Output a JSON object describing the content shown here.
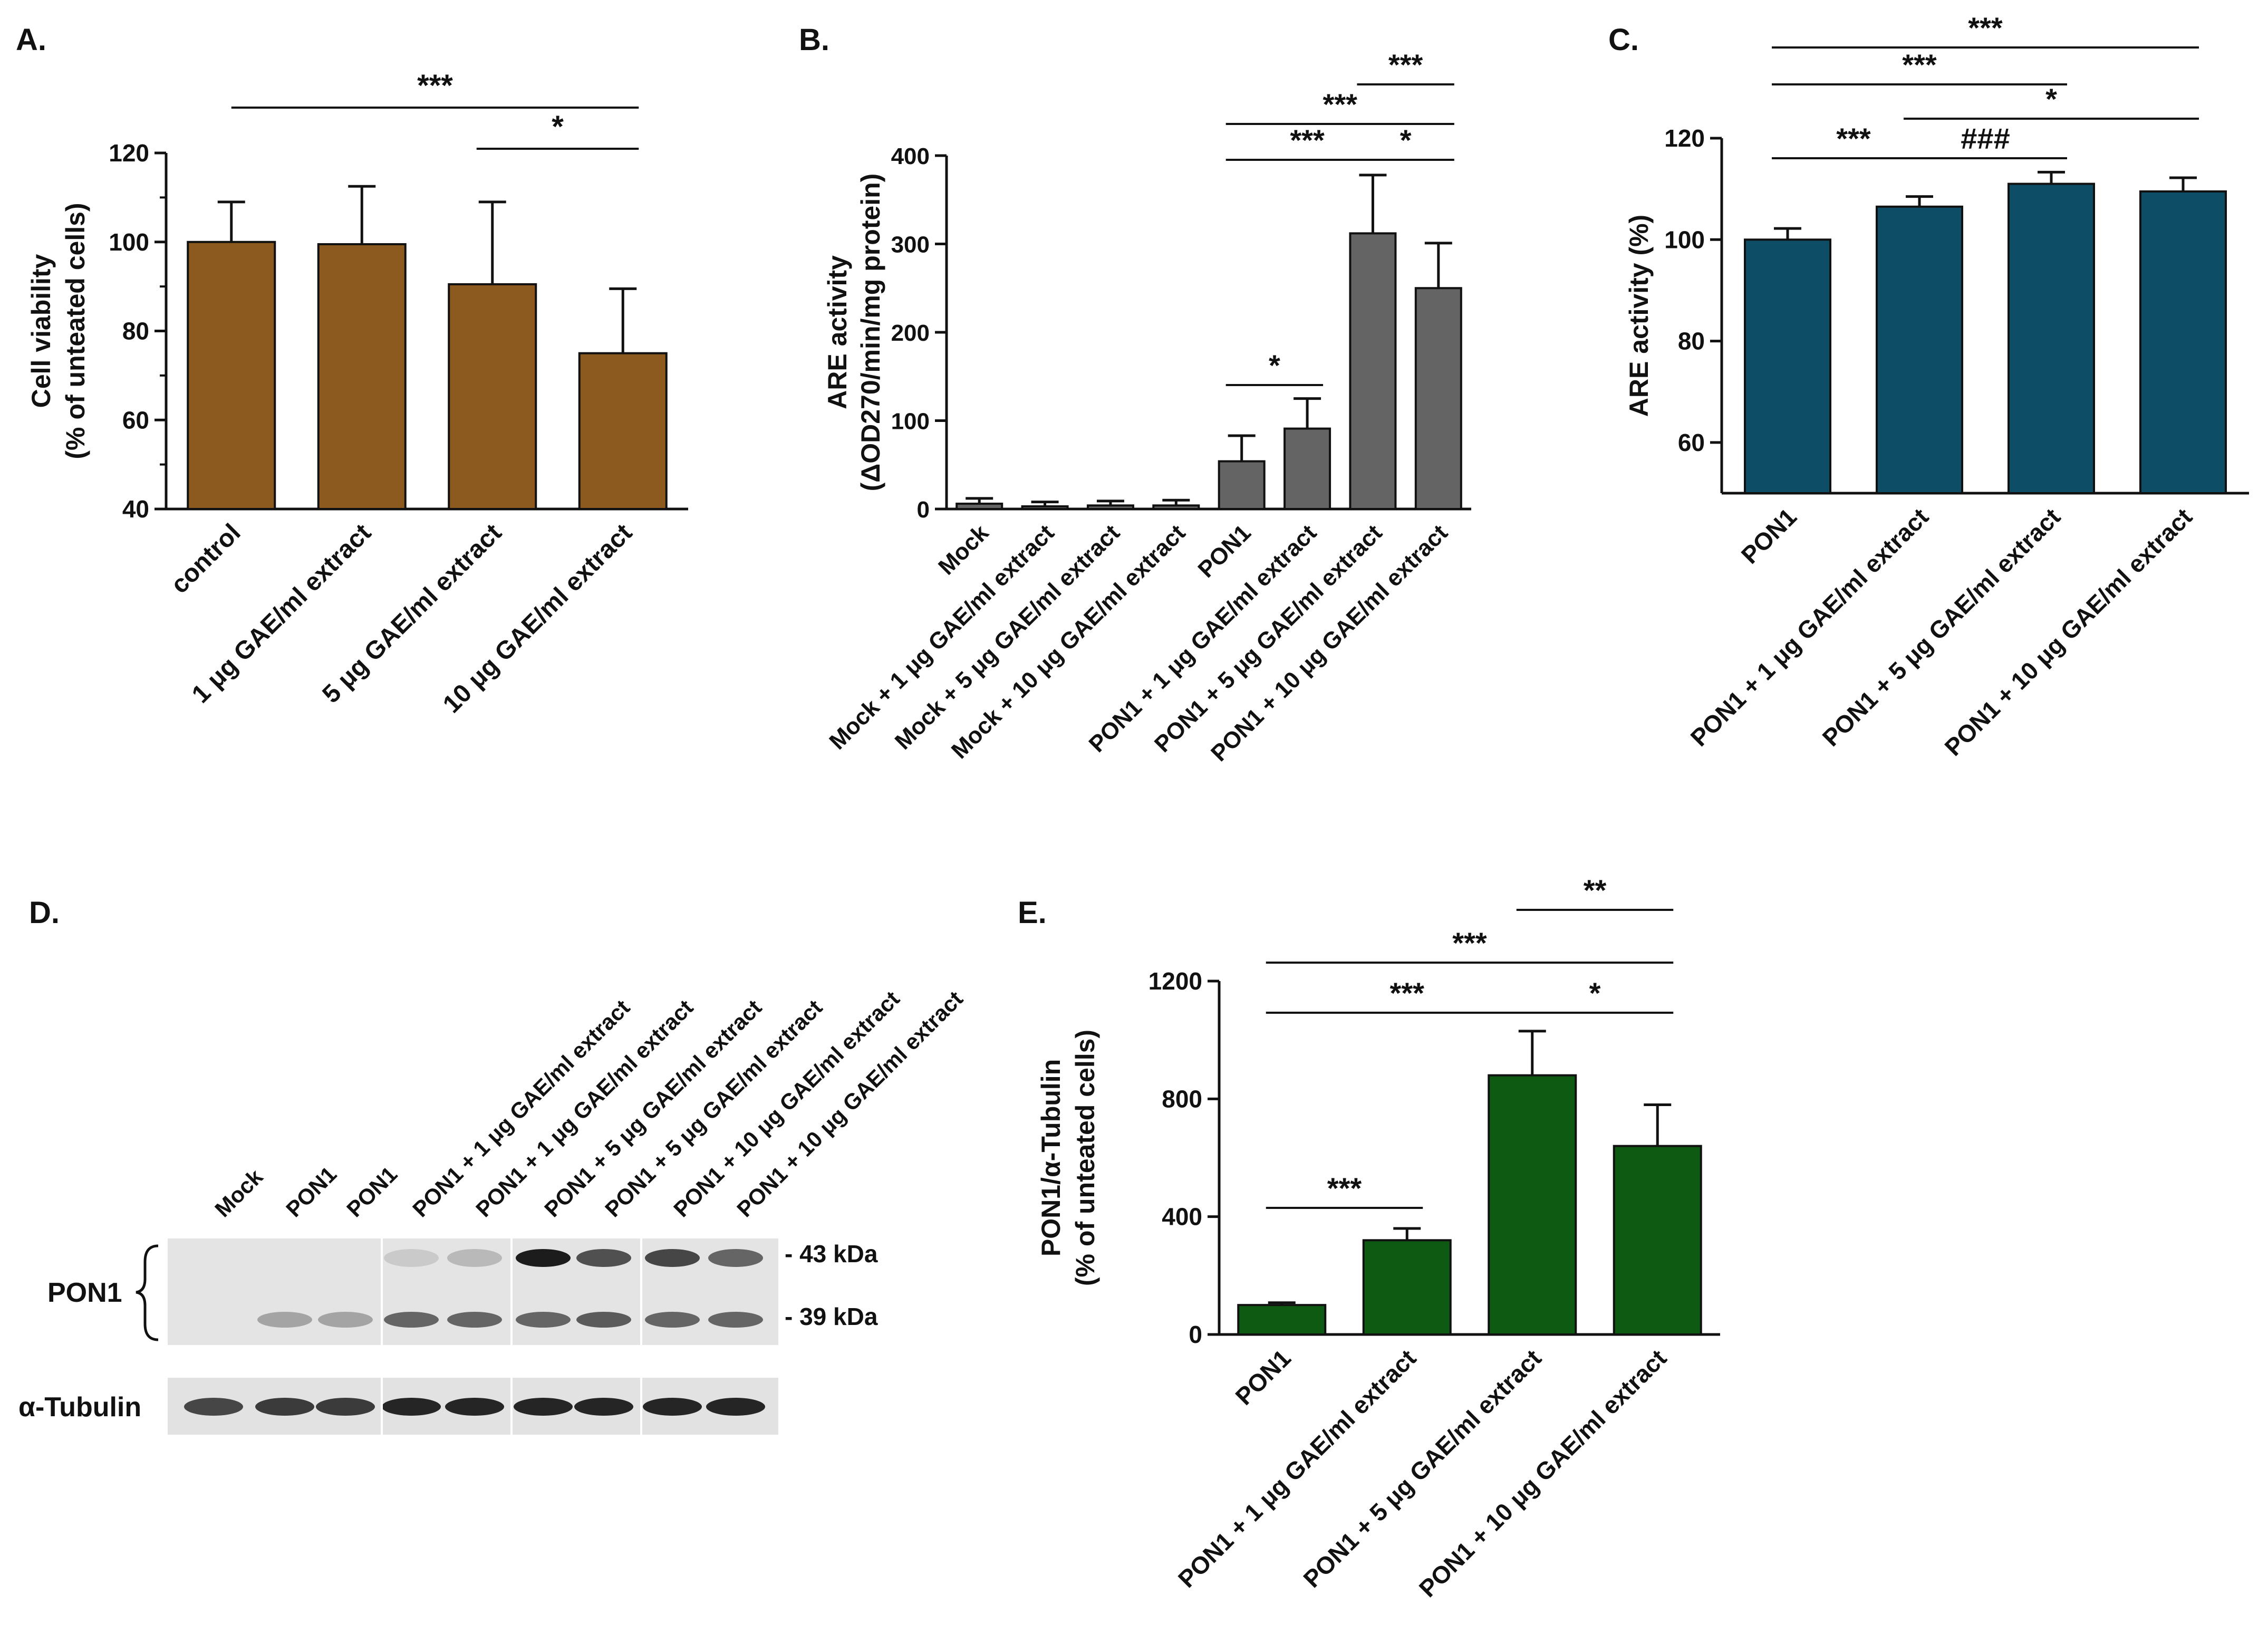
{
  "figure": {
    "panels": [
      {
        "id": "A",
        "letter": "A."
      },
      {
        "id": "B",
        "letter": "B."
      },
      {
        "id": "C",
        "letter": "C."
      },
      {
        "id": "D",
        "letter": "D."
      },
      {
        "id": "E",
        "letter": "E."
      }
    ]
  },
  "colors": {
    "A": "#8c5a1e",
    "B": "#646464",
    "C": "#0d4d66",
    "E": "#0e5a12",
    "axis": "#111111"
  },
  "blot": {
    "lanes": [
      "Mock",
      "PON1",
      "PON1",
      "PON1 + 1 μg GAE/ml extract",
      "PON1 + 1 μg GAE/ml extract",
      "PON1 + 5 μg GAE/ml extract",
      "PON1 + 5 μg GAE/ml extract",
      "PON1 + 10 μg GAE/ml extract",
      "PON1 + 10 μg GAE/ml extract"
    ],
    "row1_label": "PON1",
    "row2_label": "α-Tubulin",
    "marker_43": "- 43 kDa",
    "marker_39": "- 39 kDa",
    "band43_intensity": [
      0.0,
      0.0,
      0.0,
      0.12,
      0.2,
      0.95,
      0.7,
      0.75,
      0.6
    ],
    "band39_intensity": [
      0.0,
      0.3,
      0.3,
      0.6,
      0.6,
      0.6,
      0.65,
      0.6,
      0.6
    ],
    "tubulin_intensity": [
      0.75,
      0.8,
      0.8,
      0.9,
      0.9,
      0.9,
      0.9,
      0.9,
      0.9
    ]
  },
  "chart_data": [
    {
      "panel": "A",
      "type": "bar",
      "categories": [
        "control",
        "1 μg GAE/ml extract",
        "5 μg GAE/ml extract",
        "10 μg GAE/ml extract"
      ],
      "values": [
        100,
        99.5,
        90.5,
        75
      ],
      "errors": [
        9,
        13,
        18.5,
        14.5
      ],
      "ylabel_lines": [
        "Cell viability",
        "(% of unteated cells)"
      ],
      "ylim": [
        40,
        120
      ],
      "yticks": [
        40,
        60,
        80,
        100,
        120
      ],
      "significance": [
        {
          "from": 0,
          "to": 3,
          "label": "***",
          "level": 1
        },
        {
          "from": 2,
          "to": 3,
          "label": "*",
          "level": 0
        }
      ]
    },
    {
      "panel": "B",
      "type": "bar",
      "categories": [
        "Mock",
        "Mock + 1 μg GAE/ml extract",
        "Mock + 5 μg GAE/ml extract",
        "Mock + 10 μg GAE/ml extract",
        "PON1",
        "PON1 + 1 μg GAE/ml extract",
        "PON1 + 5 μg GAE/ml extract",
        "PON1 + 10 μg GAE/ml extract"
      ],
      "values": [
        6,
        3,
        4,
        4,
        54,
        91,
        312,
        250
      ],
      "errors": [
        6,
        5,
        5,
        6,
        29,
        34,
        66,
        51
      ],
      "ylabel_lines": [
        "ARE activity",
        "(ΔOD270/min/mg protein)"
      ],
      "ylim": [
        0,
        400
      ],
      "yticks": [
        0,
        100,
        200,
        300,
        400
      ],
      "significance": [
        {
          "from": 4,
          "to": 5,
          "label": "*",
          "level": "h1"
        },
        {
          "from": 4,
          "to": 6,
          "label": "***",
          "level": "h2"
        },
        {
          "from": 6,
          "to": 7,
          "label": "*",
          "level": "h2"
        },
        {
          "from": 4,
          "to": 7,
          "label": "***",
          "level": "h3"
        },
        {
          "from": 6,
          "to": 7,
          "label": "***",
          "level": "h4"
        }
      ]
    },
    {
      "panel": "C",
      "type": "bar",
      "categories": [
        "PON1",
        "PON1 + 1 μg GAE/ml extract",
        "PON1 + 5 μg GAE/ml extract",
        "PON1 + 10 μg GAE/ml extract"
      ],
      "values": [
        100,
        106.5,
        111,
        109.5
      ],
      "errors": [
        2.2,
        2,
        2.3,
        2.7
      ],
      "ylabel_lines": [
        "ARE activity (%)"
      ],
      "ylim": [
        50,
        120
      ],
      "yticks": [
        60,
        80,
        100,
        120
      ],
      "significance": [
        {
          "from": 0,
          "to": 1,
          "label": "***",
          "level": 0
        },
        {
          "from": 1,
          "to": 2,
          "label": "###",
          "level": 0
        },
        {
          "from": 1,
          "to": 3,
          "label": "*",
          "level": 1
        },
        {
          "from": 0,
          "to": 2,
          "label": "***",
          "level": 2
        },
        {
          "from": 0,
          "to": 3,
          "label": "***",
          "level": 3
        }
      ]
    },
    {
      "panel": "E",
      "type": "bar",
      "categories": [
        "PON1",
        "PON1 + 1 μg GAE/ml extract",
        "PON1 + 5 μg GAE/ml extract",
        "PON1 + 10 μg GAE/ml extract"
      ],
      "values": [
        100,
        320,
        880,
        640
      ],
      "errors": [
        8,
        40,
        150,
        140
      ],
      "ylabel_lines": [
        "PON1/α-Tubulin",
        "(% of unteated cells)"
      ],
      "ylim": [
        0,
        1200
      ],
      "yticks": [
        0,
        400,
        800,
        1200
      ],
      "significance": [
        {
          "from": 0,
          "to": 1,
          "label": "***",
          "level": 0
        },
        {
          "from": 2,
          "to": 3,
          "label": "*",
          "level": 1
        },
        {
          "from": 0,
          "to": 2,
          "label": "***",
          "level": 1
        },
        {
          "from": 0,
          "to": 3,
          "label": "***",
          "level": 2
        },
        {
          "from": 2,
          "to": 3,
          "label": "**",
          "level": 3
        }
      ]
    }
  ]
}
